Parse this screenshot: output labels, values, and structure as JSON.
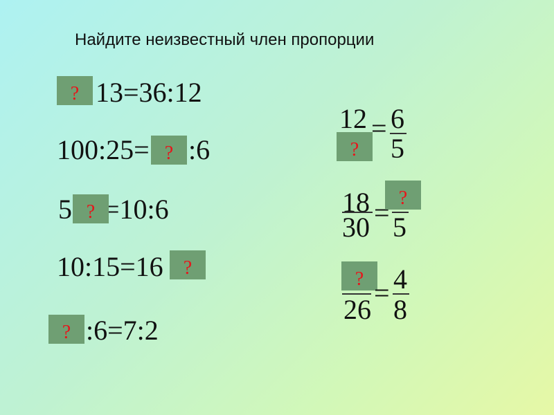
{
  "title": "Найдите неизвестный член пропорции",
  "placeholder": "?",
  "colors": {
    "box": "#6f9f73",
    "question_mark": "#e8141a"
  },
  "left_equations": [
    {
      "text": "13=36:12"
    },
    {
      "before": "100:25=",
      "after": ":6"
    },
    {
      "before": "5",
      "after": "=10:6"
    },
    {
      "before": "10:15=16"
    },
    {
      "after": ":6=7:2"
    }
  ],
  "right_fractions": [
    {
      "num1": "12",
      "num2": "6",
      "den2": "5",
      "eq": "="
    },
    {
      "num1": "18",
      "den1": "30",
      "den2": "5",
      "eq": "="
    },
    {
      "den1": "26",
      "num2": "4",
      "den2": "8",
      "eq": "="
    }
  ]
}
